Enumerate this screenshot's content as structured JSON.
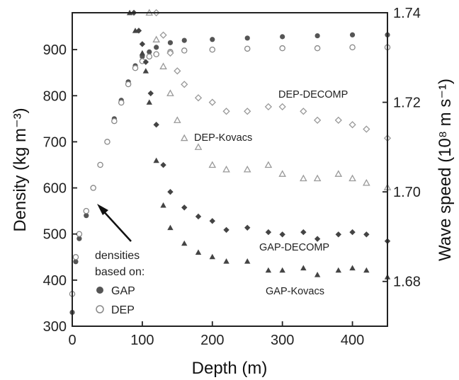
{
  "chart_data": {
    "type": "scatter",
    "xlabel": "Depth (m)",
    "ylabel_left": "Density (kg m⁻³)",
    "ylabel_right": "Wave speed (10⁸ m s⁻¹)",
    "xlim": [
      0,
      450
    ],
    "ylim_left": [
      300,
      980
    ],
    "ylim_right": [
      1.67,
      1.74
    ],
    "x_ticks": [
      0,
      100,
      200,
      300,
      400
    ],
    "y_ticks_left": [
      300,
      400,
      500,
      600,
      700,
      800,
      900
    ],
    "y_ticks_right": [
      1.68,
      1.7,
      1.72,
      1.74
    ],
    "grid": false,
    "legend": {
      "title_lines": [
        "densities",
        "based on:"
      ],
      "items": [
        {
          "label": "GAP",
          "marker": "filled-circle"
        },
        {
          "label": "DEP",
          "marker": "open-circle"
        }
      ]
    },
    "series": [
      {
        "name": "GAP",
        "axis": "left",
        "marker": "filled-circle",
        "color": "#555555",
        "x": [
          0,
          5,
          10,
          20,
          30,
          40,
          50,
          60,
          70,
          80,
          90,
          100,
          110,
          120,
          140,
          160,
          200,
          250,
          300,
          350,
          400,
          450
        ],
        "y": [
          330,
          440,
          490,
          540,
          600,
          650,
          700,
          750,
          790,
          830,
          865,
          885,
          895,
          905,
          915,
          920,
          922,
          925,
          928,
          930,
          932,
          932
        ]
      },
      {
        "name": "DEP",
        "axis": "left",
        "marker": "open-circle",
        "color": "#888888",
        "x": [
          0,
          5,
          10,
          20,
          30,
          40,
          50,
          60,
          70,
          80,
          90,
          100,
          110,
          120,
          140,
          160,
          200,
          250,
          300,
          350,
          400,
          450
        ],
        "y": [
          370,
          450,
          500,
          550,
          600,
          650,
          700,
          745,
          785,
          825,
          860,
          875,
          885,
          890,
          895,
          898,
          900,
          902,
          903,
          903,
          905,
          905
        ]
      },
      {
        "name": "GAP-Kovacs",
        "axis": "right",
        "marker": "filled-triangle",
        "color": "#444444",
        "x": [
          82,
          90,
          100,
          105,
          110,
          120,
          130,
          140,
          160,
          180,
          200,
          220,
          250,
          280,
          300,
          330,
          350,
          380,
          400,
          420,
          450
        ],
        "y": [
          1.74,
          1.736,
          1.731,
          1.727,
          1.72,
          1.707,
          1.697,
          1.692,
          1.6885,
          1.6865,
          1.6855,
          1.6845,
          1.6845,
          1.6825,
          1.6825,
          1.683,
          1.6815,
          1.6825,
          1.683,
          1.6825,
          1.681
        ]
      },
      {
        "name": "GAP-DECOMP",
        "axis": "right",
        "marker": "filled-diamond",
        "color": "#444444",
        "x": [
          88,
          95,
          100,
          105,
          112,
          120,
          130,
          140,
          160,
          180,
          200,
          220,
          250,
          280,
          300,
          330,
          350,
          380,
          400,
          420,
          450
        ],
        "y": [
          1.74,
          1.736,
          1.733,
          1.729,
          1.722,
          1.715,
          1.706,
          1.7,
          1.6965,
          1.6945,
          1.6935,
          1.6915,
          1.692,
          1.691,
          1.6905,
          1.691,
          1.6895,
          1.6905,
          1.691,
          1.6905,
          1.689
        ]
      },
      {
        "name": "DEP-Kovacs",
        "axis": "right",
        "marker": "open-triangle",
        "color": "#999999",
        "x": [
          110,
          120,
          130,
          140,
          150,
          160,
          180,
          200,
          220,
          250,
          280,
          300,
          330,
          350,
          380,
          400,
          420,
          450
        ],
        "y": [
          1.74,
          1.734,
          1.728,
          1.722,
          1.716,
          1.712,
          1.71,
          1.706,
          1.705,
          1.705,
          1.706,
          1.704,
          1.703,
          1.703,
          1.704,
          1.703,
          1.702,
          1.701
        ]
      },
      {
        "name": "DEP-DECOMP",
        "axis": "right",
        "marker": "open-diamond",
        "color": "#999999",
        "x": [
          120,
          130,
          140,
          150,
          160,
          180,
          200,
          220,
          250,
          280,
          300,
          330,
          350,
          380,
          400,
          420,
          450
        ],
        "y": [
          1.74,
          1.735,
          1.731,
          1.727,
          1.724,
          1.721,
          1.72,
          1.718,
          1.718,
          1.719,
          1.719,
          1.718,
          1.716,
          1.716,
          1.715,
          1.714,
          1.712
        ]
      }
    ],
    "annotations": [
      {
        "text": "DEP-DECOMP",
        "series": "DEP-DECOMP"
      },
      {
        "text": "DEP-Kovacs",
        "series": "DEP-Kovacs"
      },
      {
        "text": "GAP-DECOMP",
        "series": "GAP-DECOMP"
      },
      {
        "text": "GAP-Kovacs",
        "series": "GAP-Kovacs"
      }
    ]
  }
}
